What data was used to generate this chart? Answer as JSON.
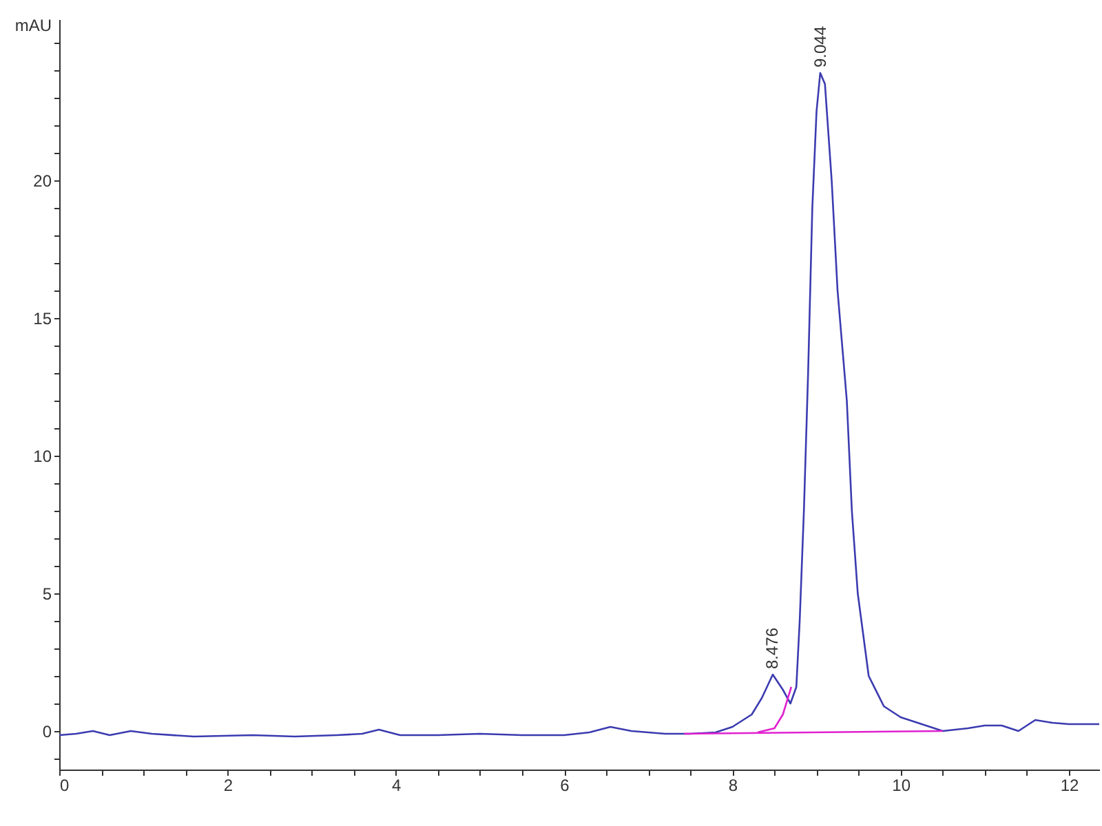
{
  "chart_data": {
    "type": "line",
    "ylabel": "mAU",
    "xlim": [
      0,
      12.36
    ],
    "ylim": [
      -1.4,
      25.85
    ],
    "xticks": [
      0,
      {
        "value": 0.5,
        "label": null
      },
      {
        "value": 1,
        "label": null
      },
      {
        "value": 1.5,
        "label": null
      },
      2,
      {
        "value": 2.5,
        "label": null
      },
      {
        "value": 3,
        "label": null
      },
      {
        "value": 3.5,
        "label": null
      },
      4,
      {
        "value": 4.5,
        "label": null
      },
      {
        "value": 5,
        "label": null
      },
      {
        "value": 5.5,
        "label": null
      },
      6,
      {
        "value": 6.5,
        "label": null
      },
      {
        "value": 7,
        "label": null
      },
      {
        "value": 7.5,
        "label": null
      },
      8,
      {
        "value": 8.5,
        "label": null
      },
      {
        "value": 9,
        "label": null
      },
      {
        "value": 9.5,
        "label": null
      },
      10,
      {
        "value": 10.5,
        "label": null
      },
      {
        "value": 11,
        "label": null
      },
      {
        "value": 11.5,
        "label": null
      },
      12
    ],
    "yticks": [
      {
        "value": -1,
        "label": null
      },
      0,
      {
        "value": 1,
        "label": null
      },
      {
        "value": 2,
        "label": null
      },
      {
        "value": 3,
        "label": null
      },
      {
        "value": 4,
        "label": null
      },
      5,
      {
        "value": 6,
        "label": null
      },
      {
        "value": 7,
        "label": null
      },
      {
        "value": 8,
        "label": null
      },
      {
        "value": 9,
        "label": null
      },
      10,
      {
        "value": 11,
        "label": null
      },
      {
        "value": 12,
        "label": null
      },
      {
        "value": 13,
        "label": null
      },
      {
        "value": 14,
        "label": null
      },
      15,
      {
        "value": 16,
        "label": null
      },
      {
        "value": 17,
        "label": null
      },
      {
        "value": 18,
        "label": null
      },
      {
        "value": 19,
        "label": null
      },
      20,
      {
        "value": 21,
        "label": null
      },
      {
        "value": 22,
        "label": null
      },
      {
        "value": 23,
        "label": null
      },
      {
        "value": 24,
        "label": null
      },
      {
        "value": 25,
        "label": null
      }
    ],
    "grid": false,
    "marker": "none",
    "line_style": "solid",
    "series": [
      {
        "color": "#3b3bb0",
        "x": [
          0,
          0.2,
          0.4,
          0.6,
          0.85,
          1.1,
          1.6,
          2.3,
          2.8,
          3.3,
          3.6,
          3.8,
          4.05,
          4.5,
          5.0,
          5.5,
          6.0,
          6.3,
          6.55,
          6.8,
          7.2,
          7.5,
          7.8,
          8.0,
          8.23,
          8.35,
          8.48,
          8.6,
          8.69,
          8.76,
          8.8,
          8.85,
          8.9,
          8.95,
          9.0,
          9.044,
          9.1,
          9.18,
          9.25,
          9.36,
          9.42,
          9.49,
          9.62,
          9.8,
          10.0,
          10.25,
          10.5,
          10.8,
          11.0,
          11.2,
          11.4,
          11.6,
          11.8,
          12.0,
          12.36
        ],
        "values": [
          -0.15,
          -0.1,
          0.0,
          -0.15,
          0.0,
          -0.1,
          -0.2,
          -0.15,
          -0.2,
          -0.15,
          -0.1,
          0.05,
          -0.15,
          -0.15,
          -0.1,
          -0.15,
          -0.15,
          -0.05,
          0.15,
          0.0,
          -0.1,
          -0.1,
          -0.05,
          0.15,
          0.6,
          1.2,
          2.05,
          1.5,
          1.0,
          1.6,
          4,
          8,
          13,
          19,
          22.5,
          23.9,
          23.5,
          20,
          16,
          12,
          8,
          5,
          2,
          0.9,
          0.5,
          0.25,
          0.0,
          0.1,
          0.2,
          0.2,
          0.0,
          0.4,
          0.3,
          0.25,
          0.25
        ]
      },
      {
        "color": "#e020d0",
        "x": [
          7.43,
          10.5
        ],
        "values": [
          -0.1,
          0.0
        ]
      },
      {
        "color": "#e020d0",
        "x": [
          8.3,
          8.5,
          8.6,
          8.7
        ],
        "values": [
          -0.05,
          0.1,
          0.6,
          1.6
        ]
      }
    ],
    "annotations": [
      {
        "text": "8.476",
        "x": 8.476,
        "y": 2.05
      },
      {
        "text": "9.044",
        "x": 9.044,
        "y": 23.9
      }
    ]
  }
}
